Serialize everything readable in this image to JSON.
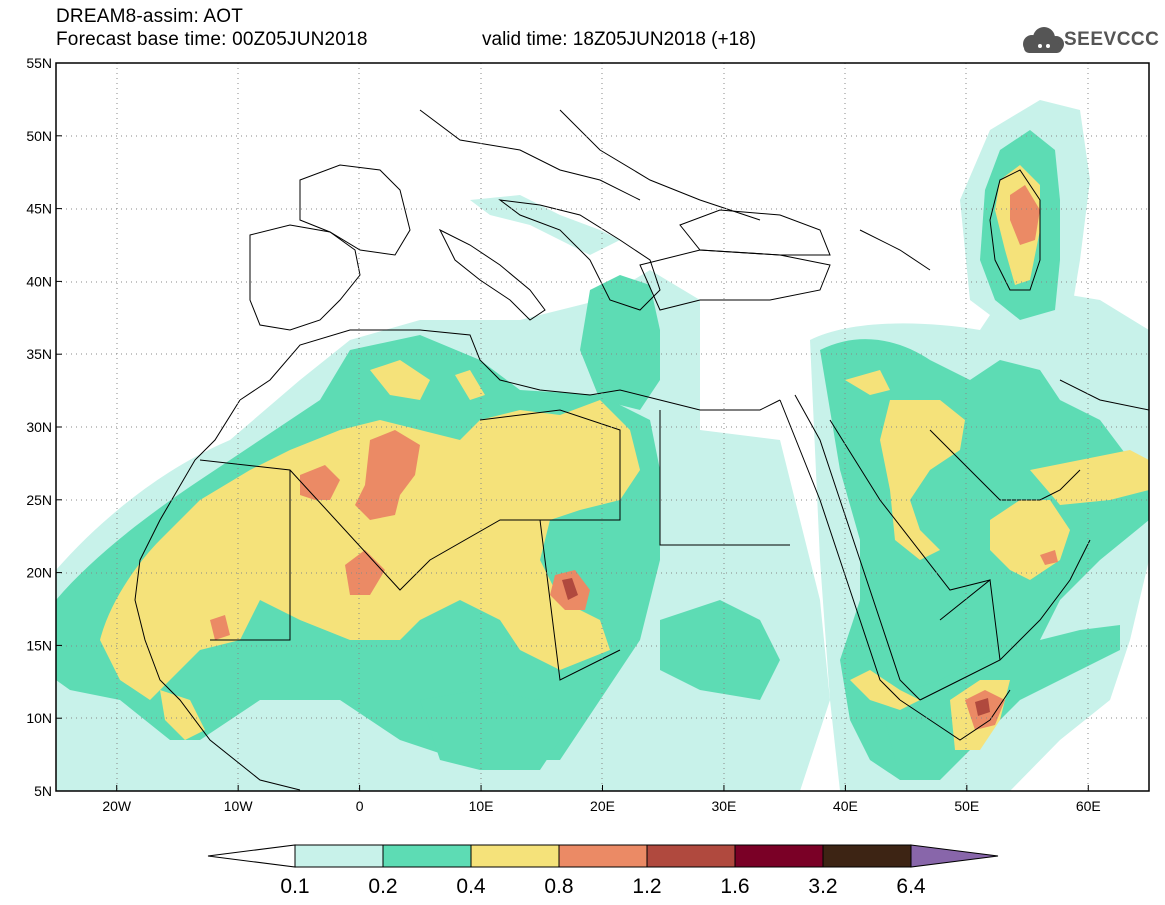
{
  "header": {
    "title": "DREAM8-assim: AOT",
    "base_time": "Forecast base time: 00Z05JUN2018",
    "valid_time": "valid time: 18Z05JUN2018 (+18)",
    "logo_text": "SEEVCCC"
  },
  "map": {
    "lon_range": [
      -25,
      65
    ],
    "lat_range": [
      5,
      55
    ],
    "lat_ticks": [
      "5N",
      "10N",
      "15N",
      "20N",
      "25N",
      "30N",
      "35N",
      "40N",
      "45N",
      "50N",
      "55N"
    ],
    "lon_ticks": [
      "20W",
      "10W",
      "0",
      "10E",
      "20E",
      "30E",
      "40E",
      "50E",
      "60E"
    ],
    "grid": "dotted"
  },
  "legend": {
    "labels": [
      "0.1",
      "0.2",
      "0.4",
      "0.8",
      "1.2",
      "1.6",
      "3.2",
      "6.4"
    ],
    "colors": [
      "#ffffff",
      "#c8f2ea",
      "#5ddcb4",
      "#f5e27a",
      "#eb8a65",
      "#b0493e",
      "#7a0026",
      "#3d2414",
      "#8866aa"
    ]
  },
  "colors": {
    "aot_01_02": "#c8f2ea",
    "aot_02_04": "#5ddcb4",
    "aot_04_08": "#f5e27a",
    "aot_08_12": "#eb8a65",
    "aot_12_16": "#b0493e",
    "aot_16_32": "#7a0026"
  }
}
